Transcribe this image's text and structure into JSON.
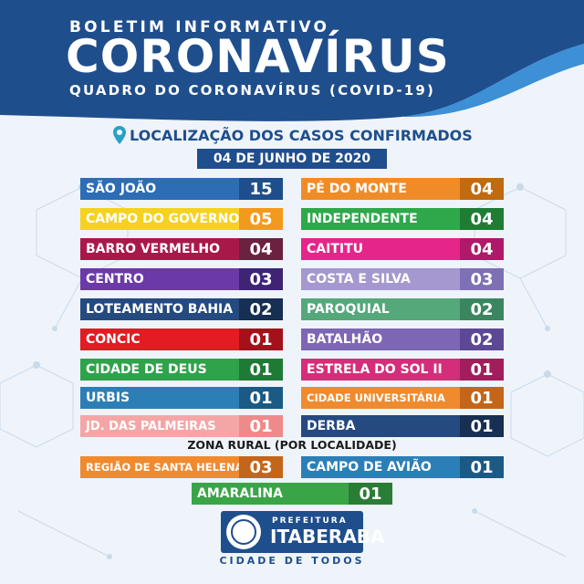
{
  "header": {
    "subtitle_top": "BOLETIM INFORMATIVO",
    "title": "CORONAVÍRUS",
    "subtitle_bottom": "QUADRO DO CORONAVÍRUS (COVID-19)"
  },
  "section_title": "LOCALIZAÇÃO DOS CASOS CONFIRMADOS",
  "date": "04 DE JUNHO DE 2020",
  "left_column": [
    {
      "name": "SÃO JOÃO",
      "count": "15",
      "color": "#2d6db5",
      "num_color": "#1f4e8c"
    },
    {
      "name": "CAMPO DO GOVERNO",
      "count": "05",
      "color": "#f5d21f",
      "num_color": "#f39a1e"
    },
    {
      "name": "BARRO VERMELHO",
      "count": "04",
      "color": "#a8194a",
      "num_color": "#6b2140"
    },
    {
      "name": "CENTRO",
      "count": "03",
      "color": "#6b3aa8",
      "num_color": "#3f2475"
    },
    {
      "name": "LOTEAMENTO BAHIA",
      "count": "02",
      "color": "#244a80",
      "num_color": "#162f52"
    },
    {
      "name": "CONCIC",
      "count": "01",
      "color": "#e31b23",
      "num_color": "#a5111b"
    },
    {
      "name": "CIDADE DE DEUS",
      "count": "01",
      "color": "#2fa34a",
      "num_color": "#1f7a35"
    },
    {
      "name": "URBIS",
      "count": "01",
      "color": "#2c7fb6",
      "num_color": "#1c5a86"
    },
    {
      "name": "JD. DAS PALMEIRAS",
      "count": "01",
      "color": "#f4a6a6",
      "num_color": "#ef8a8a"
    }
  ],
  "right_column": [
    {
      "name": "PÉ DO MONTE",
      "count": "04",
      "color": "#f08c28",
      "num_color": "#c06a12"
    },
    {
      "name": "INDEPENDENTE",
      "count": "04",
      "color": "#2ea84a",
      "num_color": "#1f7c35"
    },
    {
      "name": "CAITITU",
      "count": "04",
      "color": "#e6258a",
      "num_color": "#b0186a"
    },
    {
      "name": "COSTA E SILVA",
      "count": "03",
      "color": "#a597cf",
      "num_color": "#7f6fb5"
    },
    {
      "name": "PAROQUIAL",
      "count": "02",
      "color": "#55a87a",
      "num_color": "#3b8660"
    },
    {
      "name": "BATALHÃO",
      "count": "02",
      "color": "#7d66b3",
      "num_color": "#5d4896"
    },
    {
      "name": "ESTRELA DO SOL II",
      "count": "01",
      "color": "#d42e7a",
      "num_color": "#a21d5c"
    },
    {
      "name": "CIDADE UNIVERSITÁRIA",
      "count": "01",
      "color": "#f08a2e",
      "num_color": "#c4661a"
    },
    {
      "name": "DERBA",
      "count": "01",
      "color": "#244a80",
      "num_color": "#162f52"
    }
  ],
  "rural_title": "ZONA RURAL (POR LOCALIDADE)",
  "rural": [
    {
      "name": "REGIÃO DE SANTA HELENA",
      "count": "03",
      "color": "#f08a2e",
      "num_color": "#c4661a"
    },
    {
      "name": "CAMPO DE AVIÃO",
      "count": "01",
      "color": "#2c7fb6",
      "num_color": "#1c5a86"
    },
    {
      "name": "AMARALINA",
      "count": "01",
      "color": "#3aa547",
      "num_color": "#2a7d35"
    }
  ],
  "footer": {
    "prefeitura": "PREFEITURA",
    "city": "ITABERABA",
    "slogan": "CIDADE DE TODOS"
  },
  "icons": {
    "location": "location-pin-icon",
    "seal": "municipal-seal-icon"
  }
}
